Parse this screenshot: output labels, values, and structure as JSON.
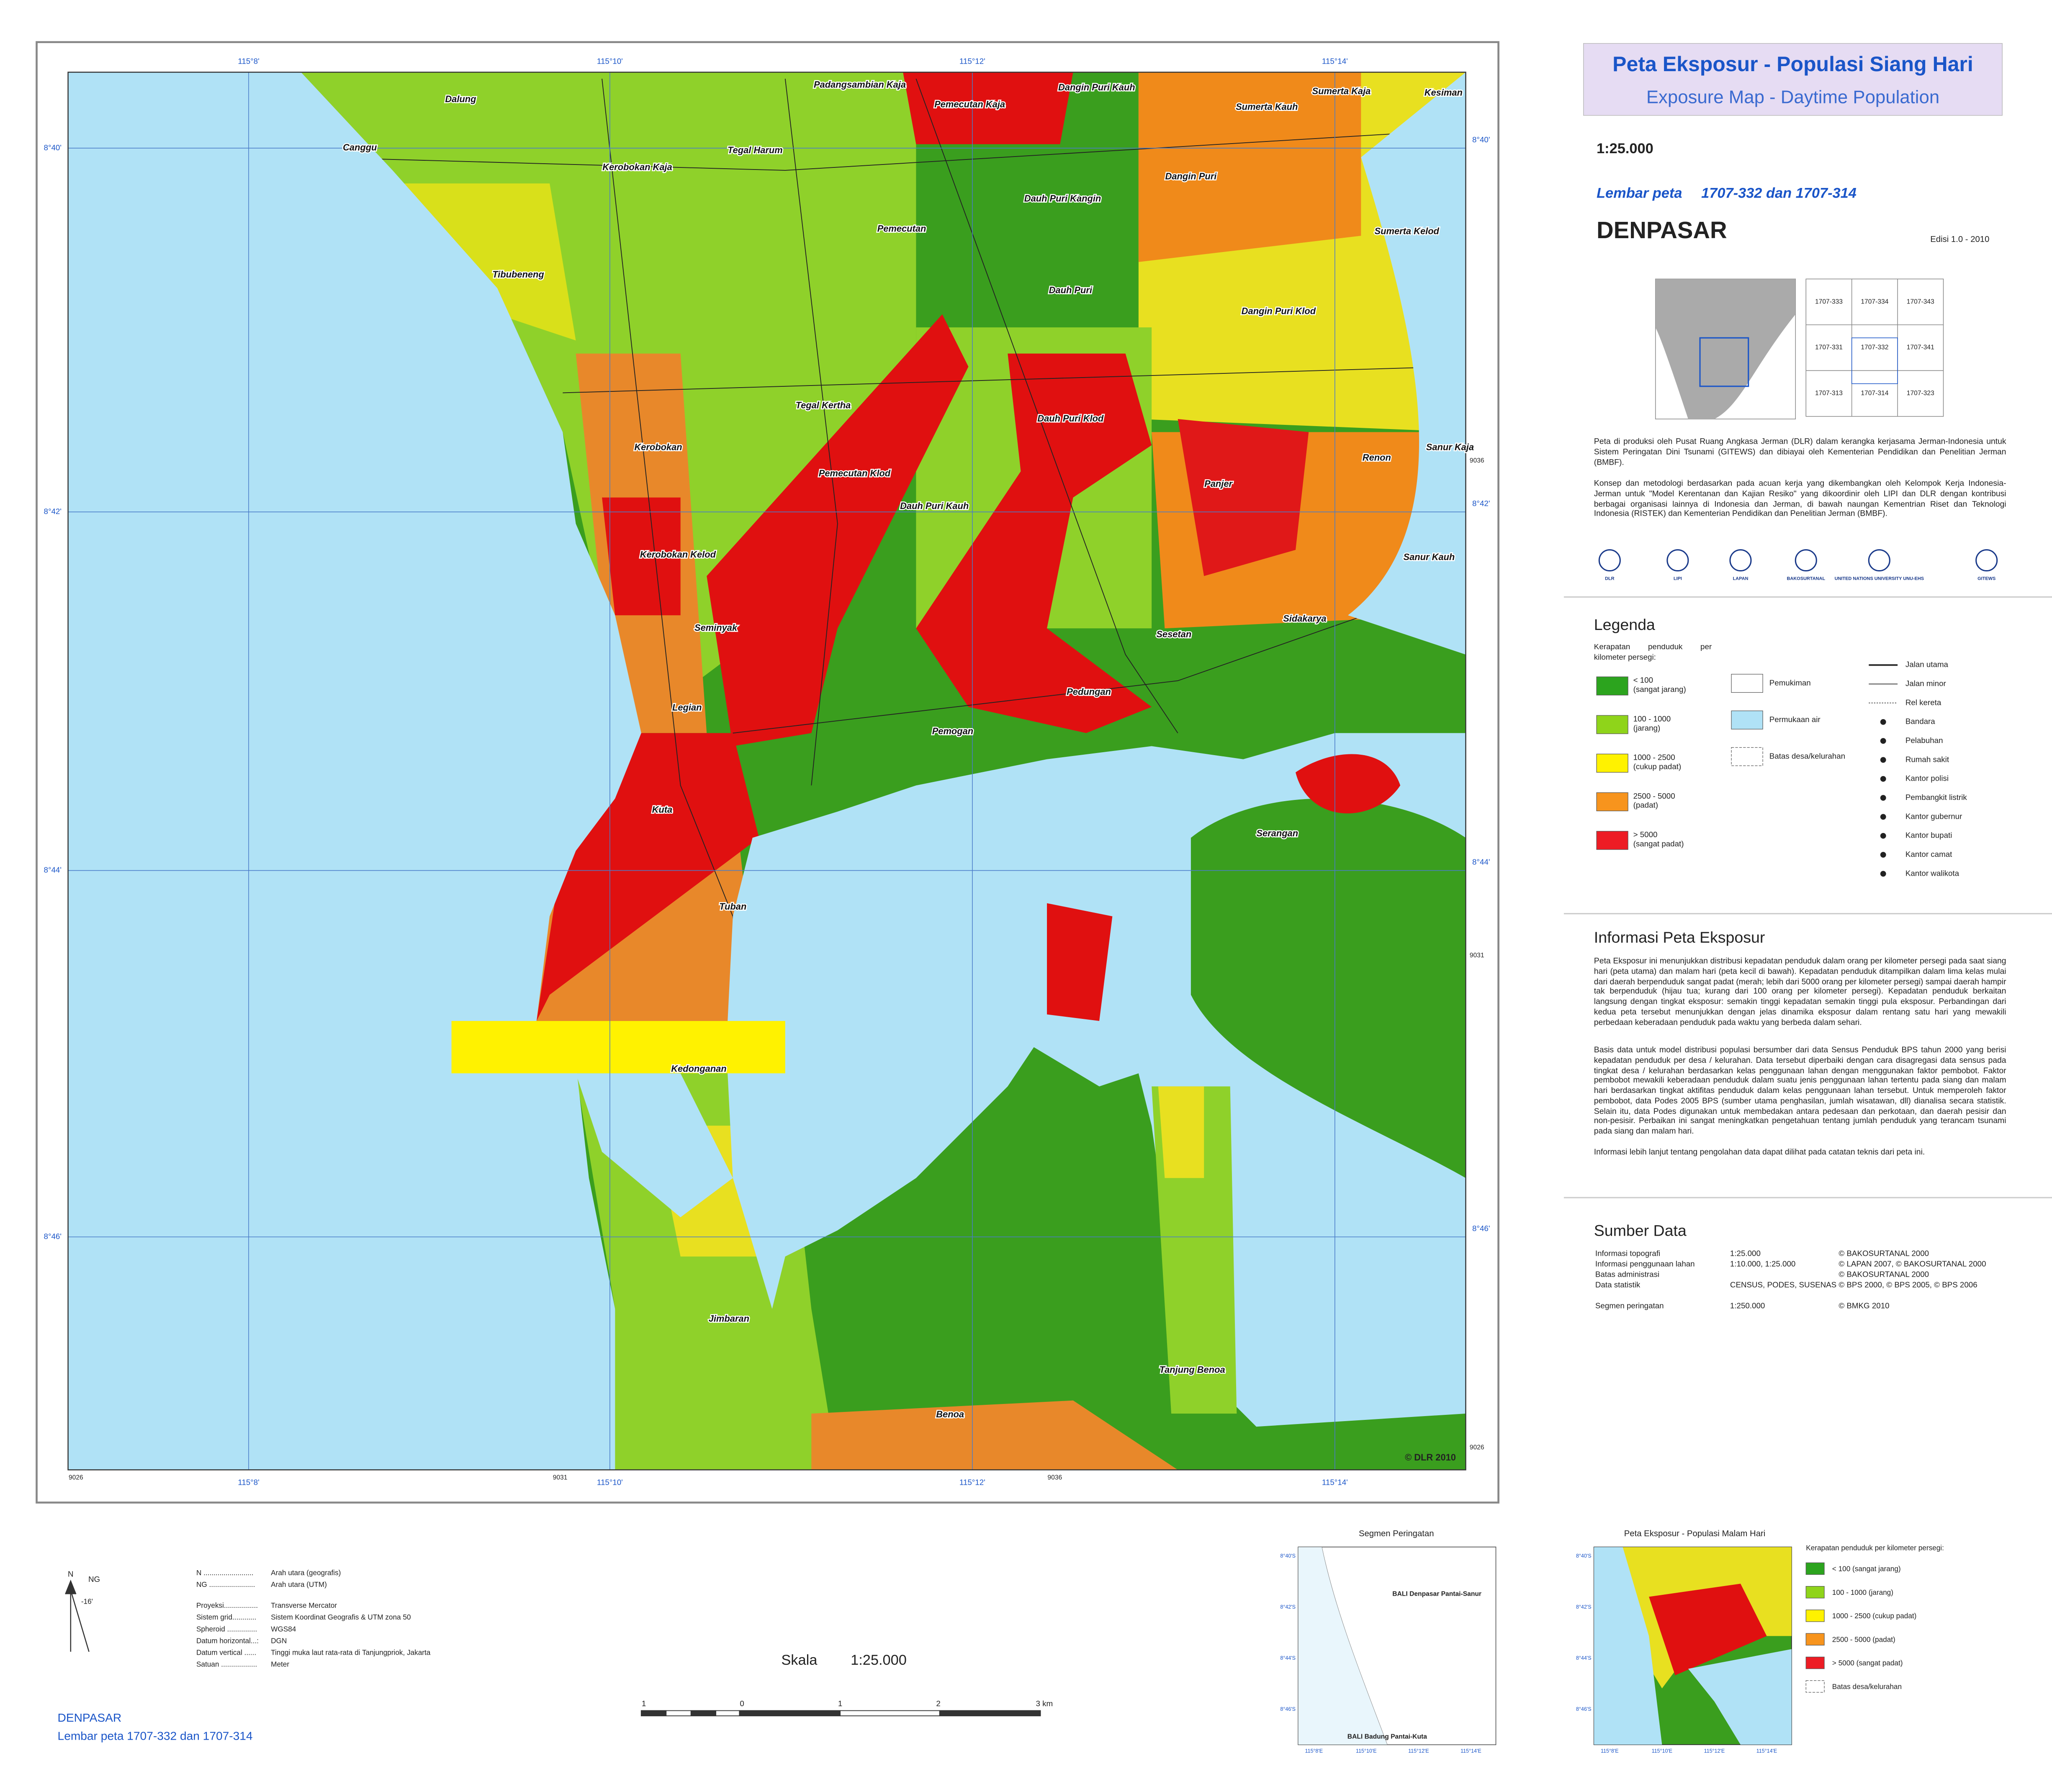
{
  "header": {
    "title": "Peta Eksposur - Populasi Siang Hari",
    "subtitle": "Exposure Map - Daytime Population",
    "scale": "1:25.000",
    "sheet_label": "Lembar peta",
    "sheet_numbers": "1707-332 dan 1707-314",
    "city": "DENPASAR",
    "edition": "Edisi 1.0  -  2010"
  },
  "index_grid": [
    "1707-333",
    "1707-334",
    "1707-343",
    "1707-331",
    "1707-332",
    "1707-341",
    "1707-313",
    "1707-314",
    "1707-323"
  ],
  "intro": [
    "Peta di produksi oleh Pusat Ruang Angkasa Jerman (DLR) dalam kerangka kerjasama Jerman-Indonesia untuk Sistem Peringatan Dini Tsunami (GITEWS) dan dibiayai  oleh Kementerian Pendidikan dan Penelitian Jerman (BMBF).",
    "Konsep dan metodologi berdasarkan pada acuan kerja yang dikembangkan oleh Kelompok Kerja Indonesia-Jerman untuk \"Model Kerentanan dan Kajian Resiko\" yang dikoordinir oleh LIPI dan DLR dengan kontribusi berbagai organisasi lainnya di Indonesia dan Jerman, di bawah naungan Kementrian Riset dan Teknologi Indonesia (RISTEK) dan Kementerian Pendidikan dan Penelitian Jerman (BMBF)."
  ],
  "logos": [
    "DLR",
    "LIPI",
    "LAPAN",
    "BAKOSURTANAL",
    "UNITED NATIONS UNIVERSITY UNU-EHS",
    "GITEWS"
  ],
  "legend": {
    "title": "Legenda",
    "density_heading": "Kerapatan penduduk per kilometer persegi:",
    "density_classes": [
      {
        "label": "< 100",
        "sublabel": "(sangat jarang)",
        "color": "#2ca41e"
      },
      {
        "label": "100 - 1000",
        "sublabel": "(jarang)",
        "color": "#8fd41a"
      },
      {
        "label": "1000 - 2500",
        "sublabel": "(cukup padat)",
        "color": "#fff200"
      },
      {
        "label": "2500 - 5000",
        "sublabel": "(padat)",
        "color": "#f7941d"
      },
      {
        "label": "> 5000",
        "sublabel": "(sangat padat)",
        "color": "#ed1c24"
      }
    ],
    "landuse": [
      "Pemukiman",
      "Permukaan air",
      "Batas desa/kelurahan"
    ],
    "symbols": [
      "Jalan utama",
      "Jalan minor",
      "Rel kereta",
      "Bandara",
      "Pelabuhan",
      "Rumah sakit",
      "Kantor polisi",
      "Pembangkit listrik",
      "Kantor gubernur",
      "Kantor bupati",
      "Kantor camat",
      "Kantor walikota"
    ]
  },
  "info": {
    "title": "Informasi Peta Eksposur",
    "paragraphs": [
      "Peta Eksposur ini menunjukkan distribusi kepadatan penduduk dalam orang per kilometer persegi pada saat siang hari (peta utama) dan malam hari (peta kecil di bawah). Kepadatan penduduk ditampilkan dalam lima kelas mulai dari daerah berpenduduk sangat padat (merah; lebih dari 5000 orang per kilometer persegi) sampai daerah hampir tak berpenduduk (hijau tua; kurang dari 100 orang per kilometer persegi). Kepadatan penduduk berkaitan langsung dengan tingkat eksposur: semakin tinggi kepadatan semakin tinggi pula eksposur. Perbandingan dari kedua peta tersebut menunjukkan dengan jelas dinamika eksposur dalam rentang satu hari yang mewakili perbedaan keberadaan penduduk pada waktu yang berbeda dalam sehari.",
      "Basis data untuk model distribusi populasi bersumber dari data Sensus Penduduk BPS tahun 2000 yang berisi kepadatan penduduk per desa / kelurahan. Data tersebut diperbaiki dengan cara disagregasi data sensus pada tingkat desa / kelurahan berdasarkan kelas penggunaan lahan dengan menggunakan faktor pembobot. Faktor pembobot mewakili keberadaan penduduk dalam suatu jenis penggunaan lahan tertentu pada siang dan malam hari berdasarkan tingkat aktifitas penduduk dalam kelas penggunaan lahan tersebut. Untuk memperoleh faktor pembobot, data Podes 2005 BPS (sumber utama penghasilan, jumlah wisatawan, dll) dianalisa secara statistik. Selain itu, data Podes digunakan untuk membedakan antara pedesaan dan perkotaan, dan daerah pesisir dan non-pesisir. Perbaikan ini sangat meningkatkan pengetahuan tentang jumlah penduduk yang terancam tsunami pada siang dan malam hari.",
      "Informasi lebih lanjut tentang pengolahan data dapat dilihat pada catatan teknis dari peta ini."
    ]
  },
  "sources": {
    "title": "Sumber Data",
    "rows": [
      {
        "item": "Informasi topografi",
        "scale": "1:25.000",
        "source": "© BAKOSURTANAL 2000"
      },
      {
        "item": "Informasi penggunaan lahan",
        "scale": "1:10.000, 1:25.000",
        "source": "© LAPAN 2007, © BAKOSURTANAL 2000"
      },
      {
        "item": "Batas administrasi",
        "source": "© BAKOSURTANAL 2000"
      },
      {
        "item": "Data statistik",
        "scale": "CENSUS, PODES, SUSENAS",
        "source": "© BPS 2000, © BPS 2005, © BPS 2006"
      },
      {
        "item": "Segmen peringatan",
        "scale": "1:250.000",
        "source": "© BMKG 2010"
      }
    ]
  },
  "place_names": [
    "Dalung",
    "Padangsambian Kaja",
    "Pemecutan Kaja",
    "Dangin Puri Kauh",
    "Sumerta Kauh",
    "Sumerta Kaja",
    "Kesiman",
    "Canggu",
    "Kerobokan Kaja",
    "Tegal Harum",
    "Dangin Puri",
    "Dauh Puri Kangin",
    "Pemecutan",
    "Sumerta Kelod",
    "Tibubeneng",
    "Dauh Puri",
    "Dangin Puri Klod",
    "Tegal Kertha",
    "Dauh Puri Klod",
    "Kerobokan",
    "Pemecutan Klod",
    "Renon",
    "Sanur Kaja",
    "Dauh Puri Kauh",
    "Panjer",
    "Kerobokan Kelod",
    "Sanur Kauh",
    "Sidakarya",
    "Seminyak",
    "Sesetan",
    "Legian",
    "Pedungan",
    "Pemogan",
    "Kuta",
    "Serangan",
    "Tuban",
    "Kedonganan",
    "Jimbaran",
    "Tanjung Benoa",
    "Benoa"
  ],
  "coordinates": {
    "longitudes": [
      "115°8'",
      "115°10'",
      "115°12'",
      "115°14'"
    ],
    "latitudes": [
      "8°40'",
      "8°42'",
      "8°44'",
      "8°46'"
    ],
    "utm_east": [
      "9026",
      "9031",
      "9036"
    ],
    "utm_north": [
      "9036",
      "9031",
      "9026"
    ]
  },
  "copyright": "© DLR 2010",
  "north": {
    "n": "N",
    "ng": "NG",
    "declination": "-16'"
  },
  "projection": [
    {
      "key": "N .........................",
      "value": "Arah utara (geografis)"
    },
    {
      "key": "NG .......................",
      "value": "Arah utara (UTM)"
    },
    {
      "key": "Proyeksi.................",
      "value": "Transverse Mercator"
    },
    {
      "key": "Sistem grid............",
      "value": "Sistem Koordinat Geografis & UTM zona 50"
    },
    {
      "key": "Spheroid ...............",
      "value": "WGS84"
    },
    {
      "key": "Datum horizontal...:",
      "value": "DGN"
    },
    {
      "key": "Datum vertical ......",
      "value": "Tinggi muka laut rata-rata di Tanjungpriok, Jakarta"
    },
    {
      "key": "Satuan ..................",
      "value": "Meter"
    }
  ],
  "scale_bar": {
    "label": "Skala",
    "value": "1:25.000",
    "ticks": [
      "1",
      "0",
      "1",
      "2",
      "3 km"
    ]
  },
  "footer": {
    "city": "DENPASAR",
    "sheet": "Lembar peta  1707-332 dan 1707-314"
  },
  "inset_segment": {
    "title": "Segmen Peringatan",
    "labels": [
      "BALI Denpasar Pantai-Sanur",
      "BALI Badung Pantai-Kuta"
    ]
  },
  "inset_night": {
    "title": "Peta Eksposur - Populasi Malam Hari",
    "legend_heading": "Kerapatan penduduk per kilometer persegi:",
    "classes": [
      "< 100 (sangat jarang)",
      "100 - 1000 (jarang)",
      "1000 - 2500 (cukup padat)",
      "2500 - 5000 (padat)",
      "> 5000 (sangat padat)",
      "Batas desa/kelurahan"
    ]
  },
  "inset_coordinates": {
    "latitudes": [
      "8°40'S",
      "8°42'S",
      "8°44'S",
      "8°46'S"
    ],
    "longitudes": [
      "115°8'E",
      "115°10'E",
      "115°12'E",
      "115°14'E"
    ]
  }
}
